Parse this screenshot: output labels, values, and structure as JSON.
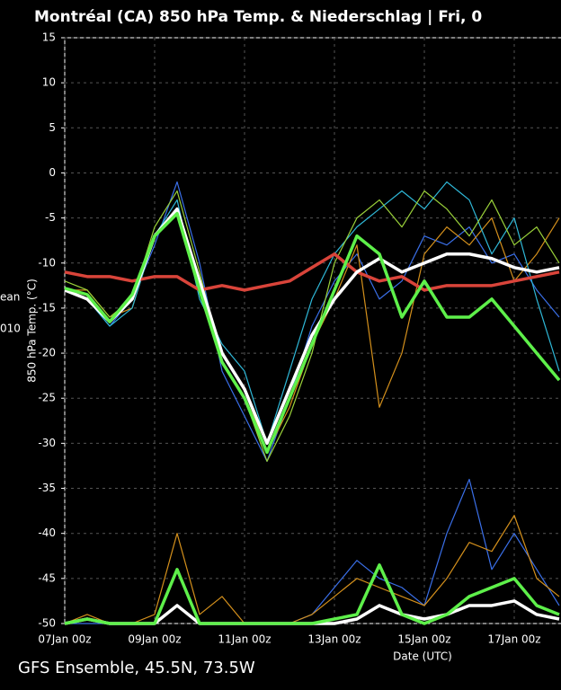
{
  "chart_data": {
    "type": "line",
    "title": "Montréal  (CA)  850 hPa Temp. & Niederschlag | Fri, 0",
    "ylabel": "850 hPa Temp. (°C)",
    "xlabel": "Date (UTC)",
    "footer": "GFS Ensemble, 45.5N, 73.5W",
    "legend_fragments": [
      "ean",
      "010"
    ],
    "categories": [
      "07Jan 00z",
      null,
      null,
      null,
      "09Jan 00z",
      null,
      null,
      null,
      "11Jan 00z",
      null,
      null,
      null,
      "13Jan 00z",
      null,
      null,
      null,
      "15Jan 00z",
      null,
      null,
      null,
      "17Jan 00z",
      null,
      null
    ],
    "ylim": [
      -50,
      15
    ],
    "yticks": [
      -50,
      -45,
      -40,
      -35,
      -30,
      -25,
      -20,
      -15,
      -10,
      -5,
      0,
      5,
      10,
      15
    ],
    "grid": true,
    "series": [
      {
        "color": "#3a6fe8",
        "values": [
          -13,
          -14,
          -17,
          -14,
          -8,
          -1,
          -10,
          -22,
          -27,
          -32,
          -25,
          -17,
          -12,
          -9,
          -14,
          -12,
          -7,
          -8,
          -6,
          -10,
          -9,
          -13,
          -16
        ]
      },
      {
        "color": "#d4901c",
        "values": [
          -13,
          -13,
          -16,
          -15,
          -7,
          -4,
          -12,
          -20,
          -24,
          -31,
          -26,
          -19,
          -14,
          -8,
          -26,
          -20,
          -9,
          -6,
          -8,
          -5,
          -12,
          -9,
          -5
        ]
      },
      {
        "color": "#2fb8d8",
        "values": [
          -13,
          -14,
          -17,
          -15,
          -7,
          -3,
          -14,
          -19,
          -22,
          -30,
          -22,
          -14,
          -9,
          -6,
          -4,
          -2,
          -4,
          -1,
          -3,
          -9,
          -5,
          -14,
          -22
        ]
      },
      {
        "color": "#9bd23a",
        "values": [
          -12,
          -13,
          -16,
          -14,
          -6,
          -2,
          -11,
          -21,
          -25,
          -32,
          -27,
          -20,
          -10,
          -5,
          -3,
          -6,
          -2,
          -4,
          -7,
          -3,
          -8,
          -6,
          -10
        ]
      },
      {
        "color": "#3a6fe8",
        "values": [
          -50,
          -50,
          -50,
          -50,
          -50,
          -44,
          -50,
          -50,
          -50,
          -50,
          -50,
          -49,
          -46,
          -43,
          -45,
          -46,
          -48,
          -40,
          -34,
          -44,
          -40,
          -44,
          -48
        ]
      },
      {
        "color": "#d4901c",
        "values": [
          -50,
          -49,
          -50,
          -50,
          -49,
          -40,
          -49,
          -47,
          -50,
          -50,
          -50,
          -49,
          -47,
          -45,
          -46,
          -47,
          -48,
          -45,
          -41,
          -42,
          -38,
          -45,
          -47
        ]
      },
      {
        "color": "#d9443a",
        "values": [
          -11,
          -11.5,
          -11.5,
          -12,
          -11.5,
          -11.5,
          -13,
          -12.5,
          -13,
          -12.5,
          -12,
          -10.5,
          -9,
          -11,
          -12,
          -11.5,
          -13,
          -12.5,
          -12.5,
          -12.5,
          -12,
          -11.5,
          -11
        ]
      },
      {
        "color": "#ffffff",
        "values": [
          -13,
          -14,
          -16.5,
          -14,
          -7,
          -4,
          -12,
          -20,
          -24,
          -30,
          -24,
          -18,
          -14,
          -11,
          -9.5,
          -11,
          -10,
          -9,
          -9,
          -9.5,
          -10.5,
          -11,
          -10.5
        ]
      },
      {
        "color": "#5ef04a",
        "values": [
          -12.8,
          -13.5,
          -16.5,
          -13.5,
          -7,
          -4.5,
          -13,
          -21,
          -25,
          -31,
          -25,
          -19,
          -13,
          -7,
          -9,
          -16,
          -12,
          -16,
          -16,
          -14,
          -17,
          -20,
          -23
        ]
      },
      {
        "color": "#ffffff",
        "values": [
          -50,
          -49.5,
          -50,
          -50,
          -50,
          -48,
          -50,
          -50,
          -50,
          -50,
          -50,
          -50,
          -50,
          -49.5,
          -48,
          -49,
          -49.5,
          -49,
          -48,
          -48,
          -47.5,
          -49,
          -49.5
        ]
      },
      {
        "color": "#5ef04a",
        "values": [
          -50,
          -49.5,
          -50,
          -50,
          -50,
          -44,
          -50,
          -50,
          -50,
          -50,
          -50,
          -50,
          -49.5,
          -49,
          -43.5,
          -49,
          -50,
          -49,
          -47,
          -46,
          -45,
          -48,
          -49
        ]
      }
    ]
  }
}
